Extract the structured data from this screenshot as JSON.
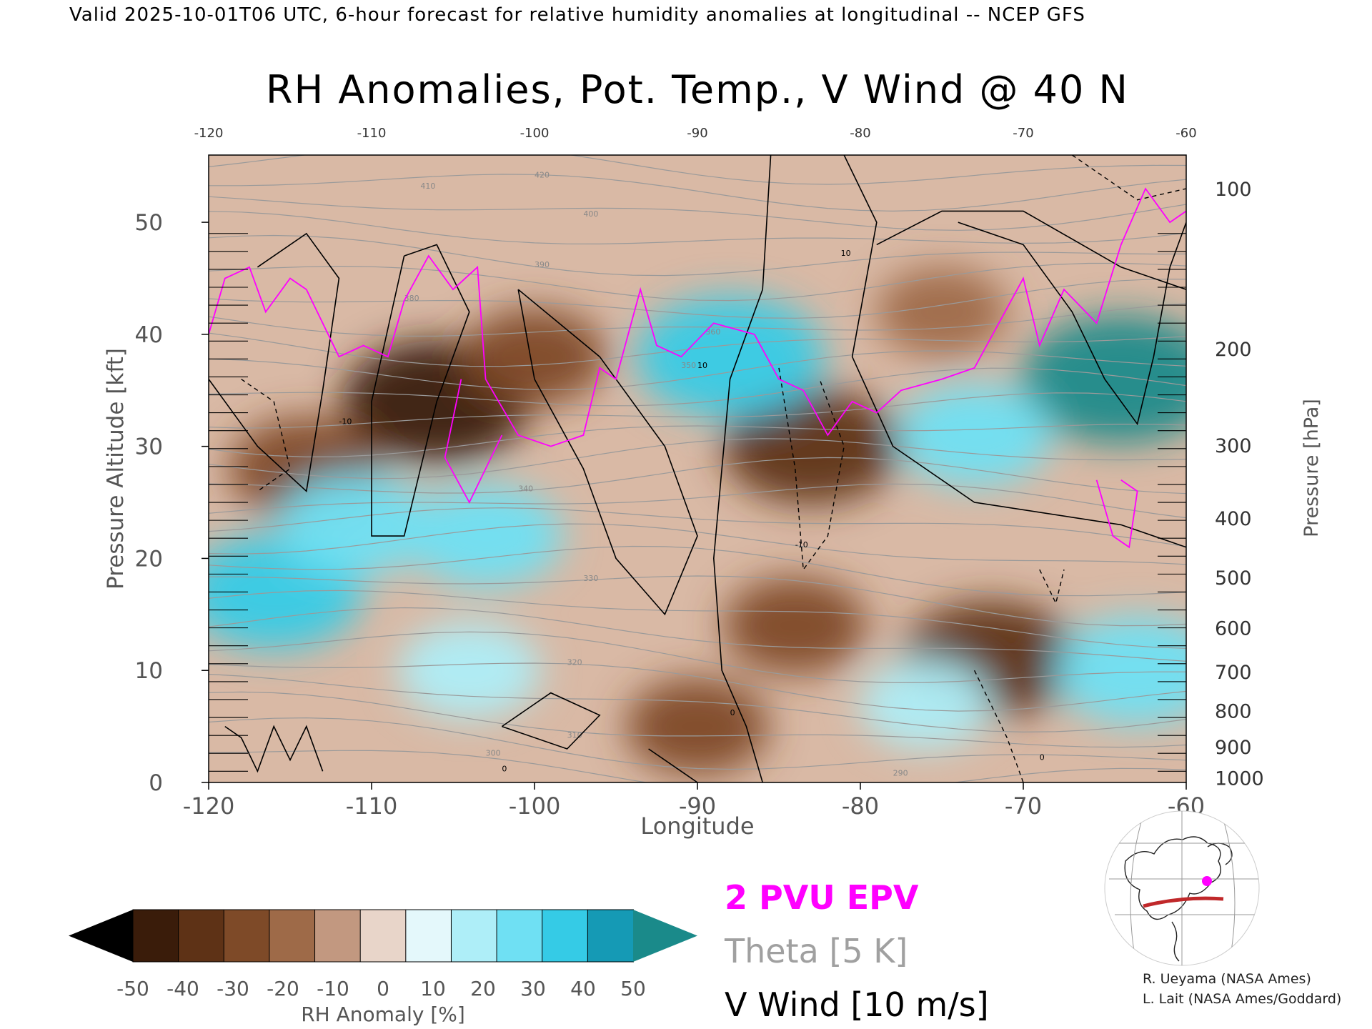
{
  "header": {
    "valid_line": "Valid 2025-10-01T06 UTC, 6-hour forecast for relative humidity anomalies at longitudinal -- NCEP GFS"
  },
  "chart_data": {
    "type": "heatmap",
    "title": "RH Anomalies, Pot. Temp., V Wind @ 40 N",
    "xlabel": "Longitude",
    "ylabel": "Pressure Altitude [kft]",
    "y2label": "Pressure [hPa]",
    "xlim": [
      -120,
      -60
    ],
    "ylim": [
      0,
      56
    ],
    "x_ticks": [
      "-120",
      "-110",
      "-100",
      "-90",
      "-80",
      "-70",
      "-60"
    ],
    "y_ticks": [
      "0",
      "10",
      "20",
      "30",
      "40",
      "50"
    ],
    "pressure_ticks": [
      {
        "label": "100",
        "kft": 53.0
      },
      {
        "label": "200",
        "kft": 38.7
      },
      {
        "label": "300",
        "kft": 30.1
      },
      {
        "label": "400",
        "kft": 23.6
      },
      {
        "label": "500",
        "kft": 18.3
      },
      {
        "label": "600",
        "kft": 13.8
      },
      {
        "label": "700",
        "kft": 9.9
      },
      {
        "label": "800",
        "kft": 6.4
      },
      {
        "label": "900",
        "kft": 3.2
      },
      {
        "label": "1000",
        "kft": 0.4
      }
    ],
    "rh_anomaly_regions": [
      {
        "lon": -106,
        "kft": 34,
        "value": -45
      },
      {
        "lon": -83,
        "kft": 30,
        "value": -40
      },
      {
        "lon": -72,
        "kft": 11,
        "value": -40
      },
      {
        "lon": -114,
        "kft": 28,
        "value": -30
      },
      {
        "lon": -100,
        "kft": 38,
        "value": -25
      },
      {
        "lon": -75,
        "kft": 42,
        "value": -20
      },
      {
        "lon": -84,
        "kft": 14,
        "value": -25
      },
      {
        "lon": -90,
        "kft": 5,
        "value": -25
      },
      {
        "lon": -88,
        "kft": 38,
        "value": 45
      },
      {
        "lon": -64,
        "kft": 36,
        "value": 50
      },
      {
        "lon": -116,
        "kft": 17,
        "value": 40
      },
      {
        "lon": -111,
        "kft": 23,
        "value": 30
      },
      {
        "lon": -103,
        "kft": 22,
        "value": 30
      },
      {
        "lon": -104,
        "kft": 10,
        "value": 25
      },
      {
        "lon": -73,
        "kft": 31,
        "value": 30
      },
      {
        "lon": -63,
        "kft": 10,
        "value": 35
      },
      {
        "lon": -76,
        "kft": 7,
        "value": 20
      }
    ],
    "colorbar": {
      "label": "RH Anomaly [%]",
      "tick_labels": [
        "-50",
        "-40",
        "-30",
        "-20",
        "-10",
        "0",
        "10",
        "20",
        "30",
        "40",
        "50"
      ],
      "colors": [
        "#3a1c0a",
        "#5e3216",
        "#7e4a28",
        "#9e6a48",
        "#c29880",
        "#e8d5c9",
        "#e4f8fb",
        "#aeeef8",
        "#6fe0f3",
        "#35cbe6",
        "#159ab5"
      ],
      "under_color": "#000000",
      "over_color": "#1a8a8a"
    },
    "legend": [
      {
        "label": "2 PVU EPV",
        "color": "#ff00ff"
      },
      {
        "label": "Theta [5 K]",
        "color": "#a0a0a0"
      },
      {
        "label": "V Wind [10 m/s]",
        "color": "#000000"
      }
    ],
    "theta_labels": [
      "290",
      "300",
      "310",
      "320",
      "330",
      "340",
      "350",
      "360",
      "380",
      "390",
      "400",
      "410",
      "420"
    ],
    "vwind_labels": [
      "0",
      "10",
      "-10"
    ],
    "grid": false
  },
  "credits": {
    "line1": "R. Ueyama (NASA Ames)",
    "line2": "L. Lait (NASA Ames/Goddard)"
  },
  "inset_map": {
    "icon": "globe-map-icon",
    "section_color": "#c0282a",
    "marker_color": "#ff00ff"
  }
}
